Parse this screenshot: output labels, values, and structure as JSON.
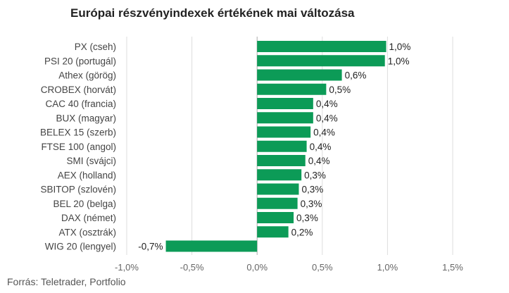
{
  "title": "Európai részvényindexek értékének mai változása",
  "source": "Forrás: Teletrader, Portfolio",
  "colors": {
    "bar": "#0c9b57",
    "grid": "#dddddd",
    "zero_line": "#aaaaaa"
  },
  "chart_data": {
    "type": "bar",
    "orientation": "horizontal",
    "categories": [
      "PX (cseh)",
      "PSI 20 (portugál)",
      "Athex (görög)",
      "CROBEX (horvát)",
      "CAC 40 (francia)",
      "BUX (magyar)",
      "BELEX 15 (szerb)",
      "FTSE 100 (angol)",
      "SMI (svájci)",
      "AEX (holland)",
      "SBITOP (szlovén)",
      "BEL 20 (belga)",
      "DAX (német)",
      "ATX (osztrák)",
      "WIG 20 (lengyel)"
    ],
    "values": [
      0.99,
      0.98,
      0.65,
      0.53,
      0.43,
      0.43,
      0.41,
      0.38,
      0.37,
      0.34,
      0.32,
      0.31,
      0.28,
      0.24,
      -0.7
    ],
    "value_labels": [
      "1,0%",
      "1,0%",
      "0,6%",
      "0,5%",
      "0,4%",
      "0,4%",
      "0,4%",
      "0,4%",
      "0,4%",
      "0,3%",
      "0,3%",
      "0,3%",
      "0,3%",
      "0,2%",
      "-0,7%"
    ],
    "xlim": [
      -1.0,
      1.5
    ],
    "xticks": [
      -1.0,
      -0.5,
      0.0,
      0.5,
      1.0,
      1.5
    ],
    "xtick_labels": [
      "-1,0%",
      "-0,5%",
      "0,0%",
      "0,5%",
      "1,0%",
      "1,5%"
    ],
    "grid": true
  }
}
